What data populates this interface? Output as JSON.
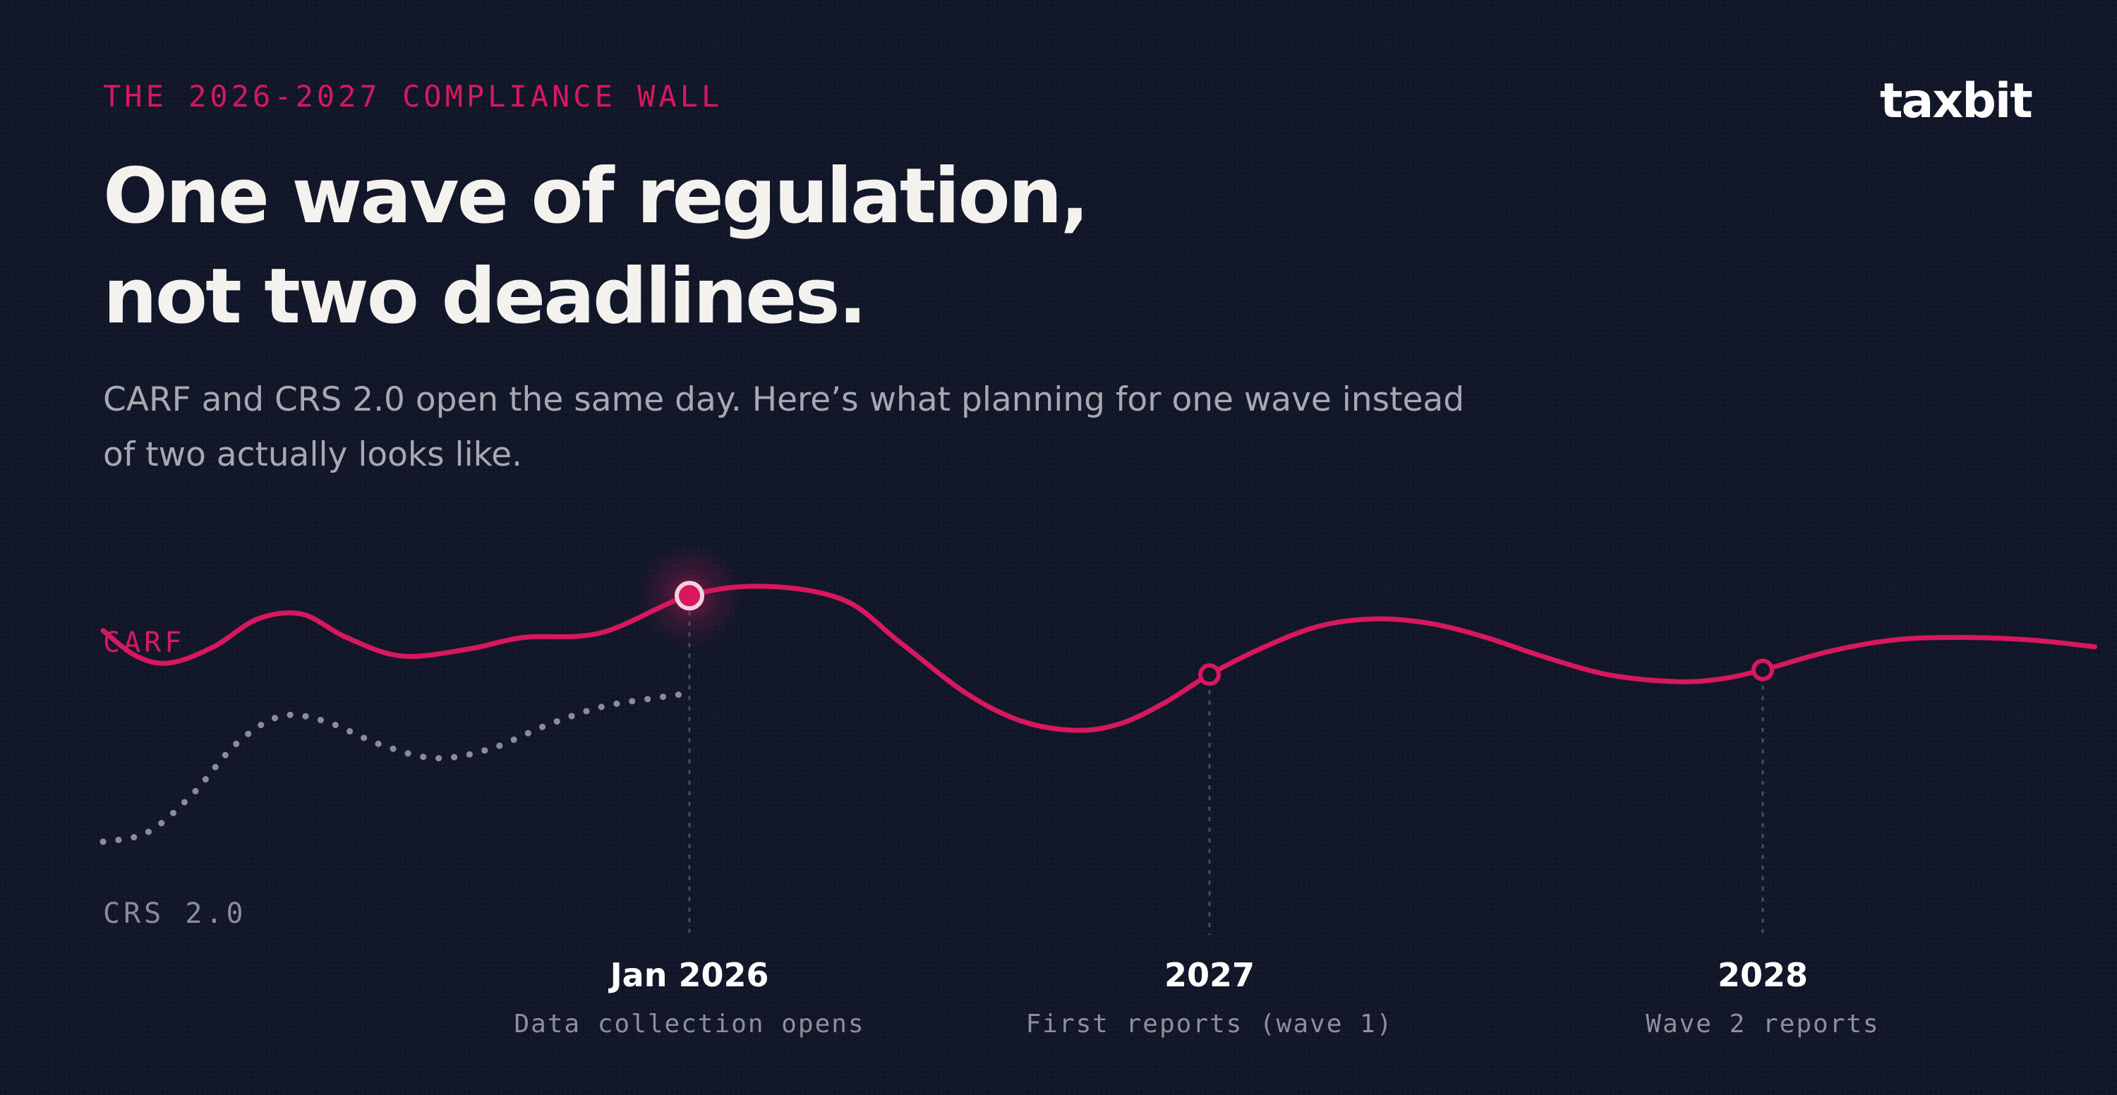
{
  "header": {
    "eyebrow": "THE 2026-2027 COMPLIANCE WALL",
    "headline_line1": "One wave of regulation,",
    "headline_line2": "not two deadlines.",
    "subhead": "CARF and CRS 2.0 open the same day. Here’s what planning for one wave instead of two actually looks like.",
    "logo": "taxbit"
  },
  "colors": {
    "background": "#111728",
    "accent": "#d7185f",
    "crs_dots": "#8a8d96",
    "headline": "#f4f2ee",
    "subhead": "#a7a9b0"
  },
  "chart_data": {
    "type": "line",
    "series": [
      {
        "name": "CARF",
        "style": "solid",
        "color": "#d7185f",
        "points": [
          [
            0.0,
            0.575
          ],
          [
            0.03,
            0.52
          ],
          [
            0.06,
            0.505
          ],
          [
            0.1,
            0.54
          ],
          [
            0.14,
            0.6
          ],
          [
            0.18,
            0.61
          ],
          [
            0.22,
            0.56
          ],
          [
            0.27,
            0.52
          ],
          [
            0.33,
            0.535
          ],
          [
            0.38,
            0.56
          ],
          [
            0.45,
            0.57
          ],
          [
            0.53,
            0.65
          ],
          [
            0.6,
            0.67
          ],
          [
            0.67,
            0.64
          ],
          [
            0.72,
            0.55
          ],
          [
            0.78,
            0.44
          ],
          [
            0.83,
            0.38
          ],
          [
            0.88,
            0.36
          ],
          [
            0.92,
            0.375
          ],
          [
            0.96,
            0.42
          ],
          [
            1.0,
            0.48
          ],
          [
            1.05,
            0.54
          ],
          [
            1.1,
            0.585
          ],
          [
            1.15,
            0.6
          ],
          [
            1.2,
            0.59
          ],
          [
            1.25,
            0.56
          ],
          [
            1.3,
            0.52
          ],
          [
            1.36,
            0.48
          ],
          [
            1.42,
            0.465
          ],
          [
            1.46,
            0.47
          ],
          [
            1.5,
            0.49
          ],
          [
            1.56,
            0.53
          ],
          [
            1.62,
            0.555
          ],
          [
            1.68,
            0.56
          ],
          [
            1.74,
            0.555
          ],
          [
            1.8,
            0.54
          ]
        ]
      },
      {
        "name": "CRS 2.0",
        "style": "dotted",
        "color": "#8a8d96",
        "points": [
          [
            0.0,
            0.12
          ],
          [
            0.04,
            0.14
          ],
          [
            0.08,
            0.22
          ],
          [
            0.12,
            0.33
          ],
          [
            0.16,
            0.39
          ],
          [
            0.2,
            0.38
          ],
          [
            0.25,
            0.33
          ],
          [
            0.3,
            0.3
          ],
          [
            0.35,
            0.32
          ],
          [
            0.4,
            0.37
          ],
          [
            0.45,
            0.41
          ],
          [
            0.5,
            0.43
          ],
          [
            0.53,
            0.44
          ]
        ]
      }
    ],
    "milestones": [
      {
        "x": 0.53,
        "label": "Jan 2026",
        "caption": "Data collection opens",
        "highlight": true
      },
      {
        "x": 1.0,
        "label": "2027",
        "caption": "First reports (wave 1)",
        "highlight": false
      },
      {
        "x": 1.5,
        "label": "2028",
        "caption": "Wave 2 reports",
        "highlight": false
      }
    ]
  }
}
